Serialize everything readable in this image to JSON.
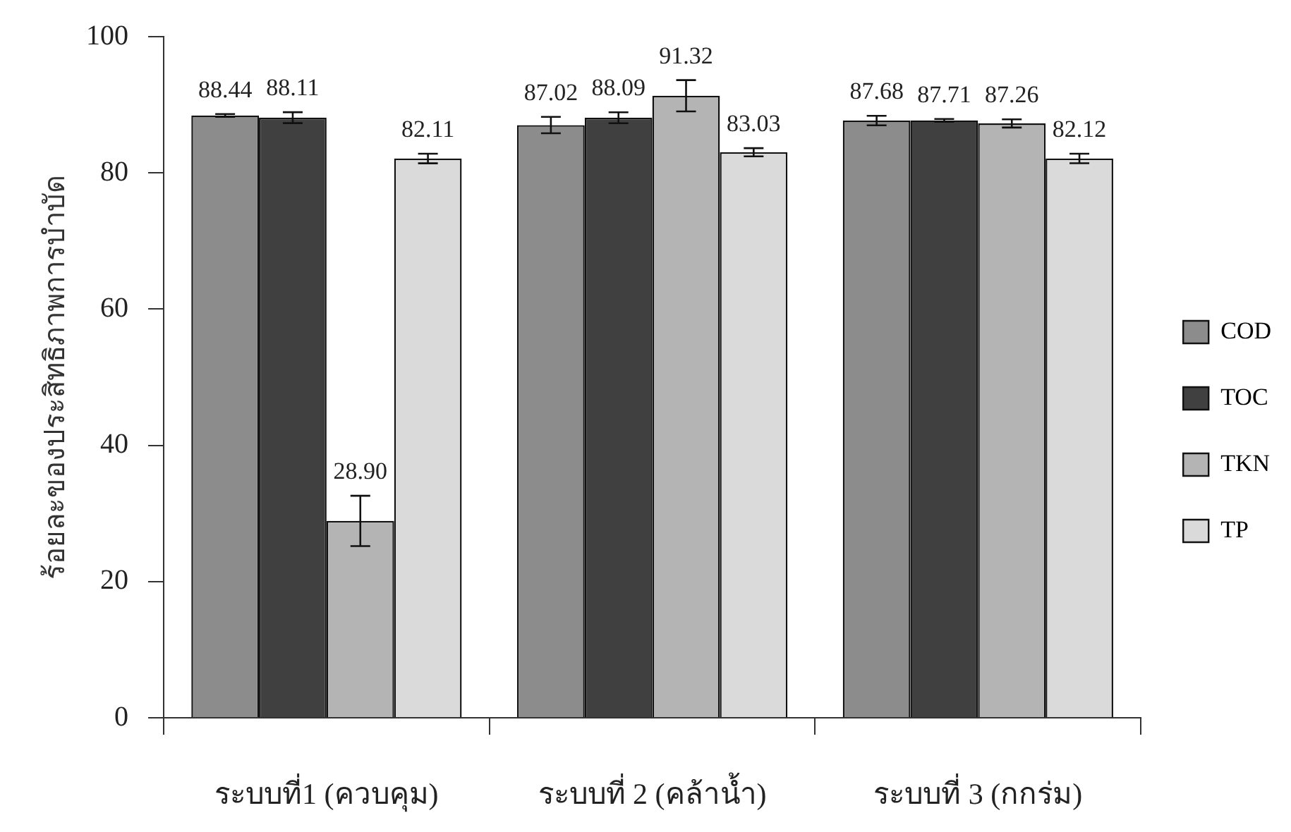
{
  "chart_data": {
    "type": "bar",
    "ylabel": "ร้อยละของประสิทธิภาพการบำบัด",
    "categories": [
      "ระบบที่1 (ควบคุม)",
      "ระบบที่ 2 (คล้าน้ำ)",
      "ระบบที่ 3 (กกร่ม)"
    ],
    "series": [
      {
        "name": "COD",
        "color": "#8c8c8c",
        "values": [
          88.44,
          87.02,
          87.68
        ],
        "errors": [
          0.2,
          1.2,
          0.7
        ],
        "value_labels": [
          "88.44",
          "87.02",
          "87.68"
        ]
      },
      {
        "name": "TOC",
        "color": "#404040",
        "values": [
          88.11,
          88.09,
          87.71
        ],
        "errors": [
          0.8,
          0.8,
          0.2
        ],
        "value_labels": [
          "88.11",
          "88.09",
          "87.71"
        ]
      },
      {
        "name": "TKN",
        "color": "#b4b4b4",
        "values": [
          28.9,
          91.32,
          87.26
        ],
        "errors": [
          3.7,
          2.3,
          0.6
        ],
        "value_labels": [
          "28.90",
          "91.32",
          "87.26"
        ]
      },
      {
        "name": "TP",
        "color": "#dadada",
        "values": [
          82.11,
          83.03,
          82.12
        ],
        "errors": [
          0.7,
          0.6,
          0.7
        ],
        "value_labels": [
          "82.11",
          "83.03",
          "82.12"
        ]
      }
    ],
    "ylim": [
      0,
      100
    ],
    "yticks": [
      0,
      20,
      40,
      60,
      80,
      100
    ],
    "legend": "right"
  }
}
